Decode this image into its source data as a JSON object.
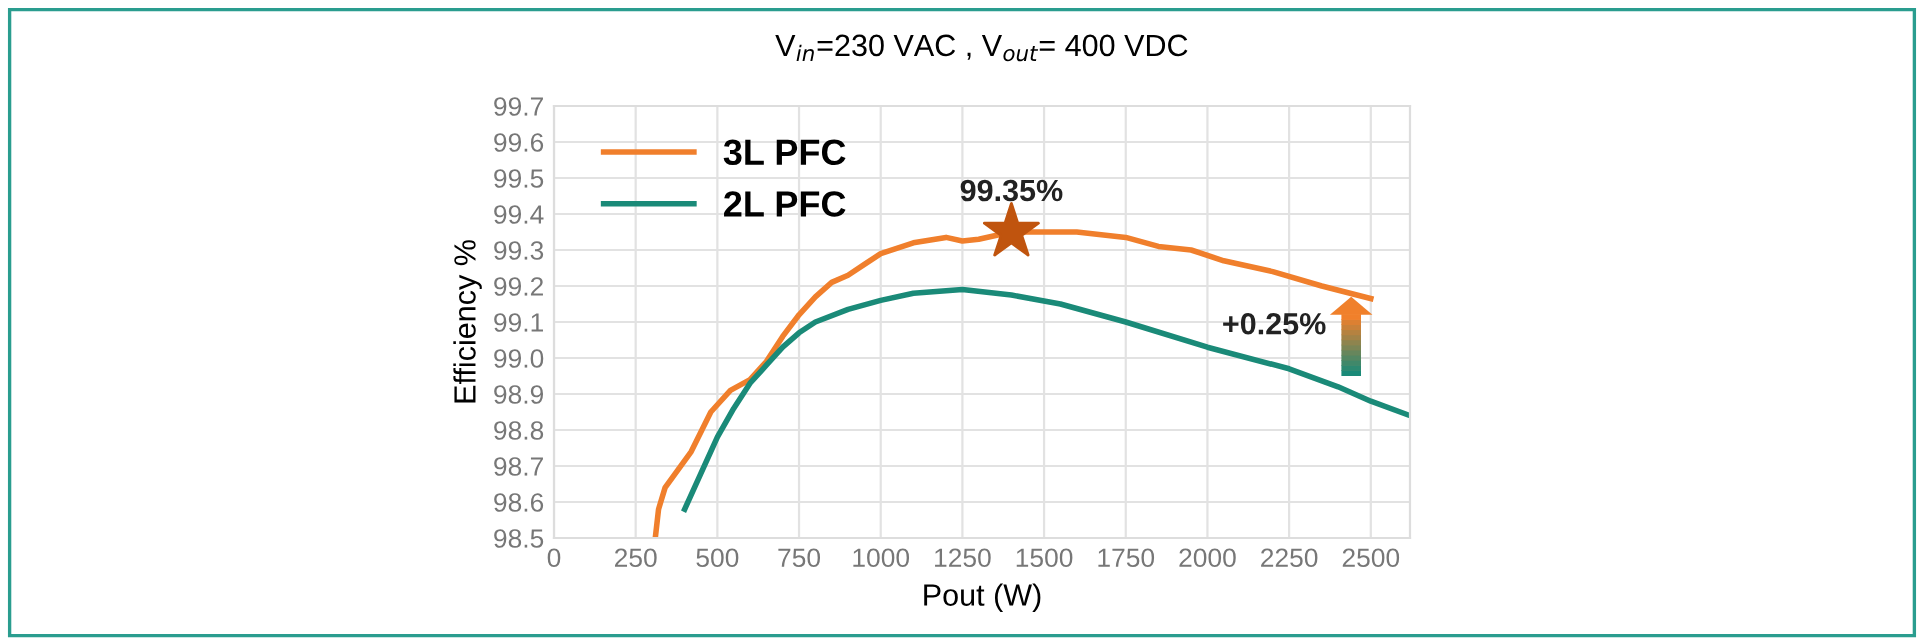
{
  "chart_data": {
    "type": "line",
    "title": "V$_{in}$=230 VAC , V$_{out}$= 400 VDC",
    "xlabel": "Pout (W)",
    "ylabel": "Efficiency %",
    "xlim": [
      0,
      2620
    ],
    "ylim": [
      98.5,
      99.7
    ],
    "xticks": [
      0,
      250,
      500,
      750,
      1000,
      1250,
      1500,
      1750,
      2000,
      2250,
      2500
    ],
    "yticks": [
      {
        "value": 98.5,
        "label": "98.5"
      },
      {
        "value": 98.6,
        "label": "98.6"
      },
      {
        "value": 98.7,
        "label": "98.7"
      },
      {
        "value": 98.8,
        "label": "98.8"
      },
      {
        "value": 98.9,
        "label": "98.9"
      },
      {
        "value": 99.0,
        "label": "99.0"
      },
      {
        "value": 99.1,
        "label": "99.1"
      },
      {
        "value": 99.2,
        "label": "99.2"
      },
      {
        "value": 99.3,
        "label": "99.3"
      },
      {
        "value": 99.4,
        "label": "99.4"
      },
      {
        "value": 99.5,
        "label": "99.5"
      },
      {
        "value": 99.6,
        "label": "99.6"
      },
      {
        "value": 99.7,
        "label": "99.7"
      }
    ],
    "grid": true,
    "legend": "top left",
    "marker": "none",
    "line_style": "solid",
    "series": [
      {
        "name": "3L PFC",
        "color": "#f07f2c",
        "x": [
          310,
          320,
          340,
          380,
          420,
          480,
          540,
          600,
          650,
          700,
          750,
          800,
          850,
          900,
          950,
          1000,
          1100,
          1200,
          1250,
          1300,
          1400,
          1500,
          1600,
          1750,
          1850,
          1950,
          2050,
          2200,
          2350,
          2500
        ],
        "values": [
          98.5,
          98.58,
          98.64,
          98.69,
          98.74,
          98.85,
          98.91,
          98.94,
          98.99,
          99.06,
          99.12,
          99.17,
          99.21,
          99.23,
          99.26,
          99.29,
          99.32,
          99.335,
          99.325,
          99.33,
          99.35,
          99.35,
          99.35,
          99.335,
          99.31,
          99.3,
          99.27,
          99.24,
          99.2,
          99.165
        ]
      },
      {
        "name": "2L PFC",
        "color": "#1a8a78",
        "x": [
          400,
          450,
          500,
          550,
          600,
          650,
          700,
          750,
          800,
          900,
          1000,
          1100,
          1250,
          1400,
          1550,
          1750,
          2000,
          2250,
          2400,
          2500,
          2620
        ],
        "values": [
          98.58,
          98.68,
          98.78,
          98.86,
          98.93,
          98.98,
          99.03,
          99.07,
          99.1,
          99.135,
          99.16,
          99.18,
          99.19,
          99.175,
          99.15,
          99.1,
          99.03,
          98.97,
          98.92,
          98.88,
          98.84
        ]
      },
      {
        "type": "scatter",
        "marker": "star",
        "color": "#c0540e",
        "x": [
          1400
        ],
        "values": [
          99.35
        ]
      }
    ],
    "annotations": [
      {
        "text": "99.35%",
        "x": 1400,
        "y": 99.35
      },
      {
        "text": "+0.25%",
        "x": 2500,
        "y": 99.165
      }
    ]
  }
}
